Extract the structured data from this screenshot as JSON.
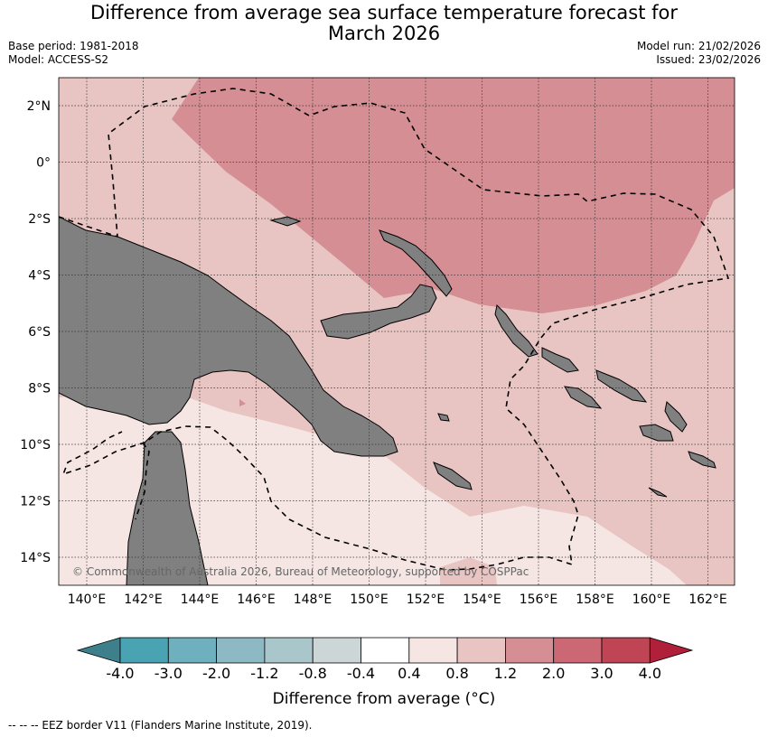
{
  "header": {
    "title_line1": "Difference from average sea surface temperature forecast for",
    "title_line2": "March 2026",
    "base_period": "Base period: 1981-2018",
    "model": "Model: ACCESS-S2",
    "model_run": "Model run: 21/02/2026",
    "issued": "Issued: 23/02/2026"
  },
  "map": {
    "lat_labels": [
      "2°N",
      "0°",
      "2°S",
      "4°S",
      "6°S",
      "8°S",
      "10°S",
      "12°S",
      "14°S"
    ],
    "lon_labels": [
      "140°E",
      "142°E",
      "144°E",
      "146°E",
      "148°E",
      "150°E",
      "152°E",
      "154°E",
      "156°E",
      "158°E",
      "160°E",
      "162°E"
    ],
    "copyright": "© Commonwealth of Australia 2026, Bureau of Meteorology, supported by COSPPac",
    "colors": {
      "land": "#808080",
      "anom_0_4_0_8": "#f5e6e4",
      "anom_0_8_1_2": "#e8c5c2",
      "anom_1_2_2_0": "#d48e94"
    }
  },
  "colorbar": {
    "ticks": [
      "-4.0",
      "-3.0",
      "-2.0",
      "-1.2",
      "-0.8",
      "-0.4",
      "0.4",
      "0.8",
      "1.2",
      "2.0",
      "3.0",
      "4.0"
    ],
    "colors": [
      "#3d7f8a",
      "#4aa3b3",
      "#6fb0be",
      "#8cb9c3",
      "#a9c6cb",
      "#cdd6d7",
      "#ffffff",
      "#f5e6e4",
      "#e8c5c2",
      "#d48e94",
      "#cb6873",
      "#bf4454",
      "#b0203a"
    ],
    "label": "Difference from average (°C)"
  },
  "legend": {
    "eez": "--  --  -- EEZ border V11 (Flanders Marine Institute, 2019)."
  }
}
